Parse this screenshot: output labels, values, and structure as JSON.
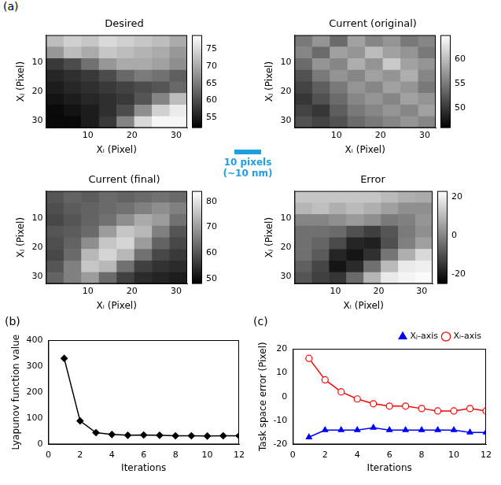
{
  "chart_data": [
    {
      "type": "heatmap",
      "panel_label": "(a)",
      "title": "Desired",
      "x_label": "Xᵢ (Pixel)",
      "y_label": "Xⱼ (Pixel)",
      "x": [
        2.5,
        6.5,
        10.5,
        14.5,
        18.5,
        22.5,
        26.5,
        30.5
      ],
      "y": [
        2.5,
        6.5,
        10.5,
        14.5,
        18.5,
        22.5,
        26.5,
        30.5
      ],
      "cells": [
        [
          72,
          74,
          73,
          75,
          74,
          73,
          72,
          70
        ],
        [
          68,
          72,
          70,
          73,
          72,
          71,
          70,
          68
        ],
        [
          58,
          60,
          64,
          68,
          70,
          70,
          69,
          67
        ],
        [
          56,
          57,
          58,
          60,
          63,
          65,
          64,
          62
        ],
        [
          55,
          56,
          57,
          58,
          59,
          60,
          61,
          63
        ],
        [
          54,
          55,
          56,
          57,
          58,
          61,
          66,
          72
        ],
        [
          53,
          54,
          55,
          57,
          60,
          67,
          74,
          77
        ],
        [
          53,
          53,
          55,
          58,
          66,
          75,
          78,
          78
        ]
      ],
      "xlim": [
        0.5,
        32.5
      ],
      "ylim": [
        0.5,
        32.5
      ],
      "xticks": [
        10,
        20,
        30
      ],
      "yticks": [
        10,
        20,
        30
      ],
      "grid": false,
      "colorbar_range": [
        52,
        79
      ],
      "colorbar_ticks": [
        55,
        60,
        65,
        70,
        75
      ]
    },
    {
      "type": "heatmap",
      "title": "Current (original)",
      "x_label": "Xᵢ (Pixel)",
      "y_label": "Xⱼ (Pixel)",
      "x": [
        2.5,
        6.5,
        10.5,
        14.5,
        18.5,
        22.5,
        26.5,
        30.5
      ],
      "y": [
        2.5,
        6.5,
        10.5,
        14.5,
        18.5,
        22.5,
        26.5,
        30.5
      ],
      "cells": [
        [
          55,
          57,
          54,
          58,
          56,
          57,
          55,
          56
        ],
        [
          56,
          54,
          58,
          57,
          60,
          58,
          57,
          55
        ],
        [
          54,
          57,
          56,
          59,
          57,
          61,
          58,
          57
        ],
        [
          52,
          55,
          57,
          56,
          58,
          57,
          59,
          56
        ],
        [
          51,
          53,
          55,
          57,
          56,
          58,
          57,
          55
        ],
        [
          50,
          52,
          54,
          56,
          57,
          56,
          58,
          57
        ],
        [
          51,
          50,
          53,
          55,
          56,
          57,
          56,
          58
        ],
        [
          52,
          51,
          52,
          54,
          55,
          56,
          57,
          56
        ]
      ],
      "xlim": [
        0.5,
        32.5
      ],
      "ylim": [
        0.5,
        32.5
      ],
      "xticks": [
        10,
        20,
        30
      ],
      "yticks": [
        10,
        20,
        30
      ],
      "grid": false,
      "colorbar_range": [
        46,
        65
      ],
      "colorbar_ticks": [
        50,
        55,
        60
      ]
    },
    {
      "type": "heatmap",
      "title": "Current (final)",
      "x_label": "Xᵢ (Pixel)",
      "y_label": "Xⱼ (Pixel)",
      "x": [
        2.5,
        6.5,
        10.5,
        14.5,
        18.5,
        22.5,
        26.5,
        30.5
      ],
      "y": [
        2.5,
        6.5,
        10.5,
        14.5,
        18.5,
        22.5,
        26.5,
        30.5
      ],
      "cells": [
        [
          60,
          62,
          61,
          63,
          62,
          63,
          64,
          63
        ],
        [
          59,
          61,
          62,
          63,
          64,
          66,
          68,
          66
        ],
        [
          58,
          60,
          62,
          64,
          68,
          72,
          70,
          64
        ],
        [
          60,
          61,
          63,
          70,
          76,
          74,
          66,
          60
        ],
        [
          59,
          62,
          68,
          76,
          78,
          70,
          62,
          58
        ],
        [
          58,
          63,
          74,
          78,
          74,
          64,
          58,
          56
        ],
        [
          60,
          66,
          76,
          74,
          64,
          57,
          55,
          54
        ],
        [
          62,
          66,
          70,
          63,
          57,
          54,
          53,
          52
        ]
      ],
      "xlim": [
        0.5,
        32.5
      ],
      "ylim": [
        0.5,
        32.5
      ],
      "xticks": [
        10,
        20,
        30
      ],
      "yticks": [
        10,
        20,
        30
      ],
      "grid": false,
      "colorbar_range": [
        48,
        84
      ],
      "colorbar_ticks": [
        50,
        60,
        70,
        80
      ]
    },
    {
      "type": "heatmap",
      "title": "Error",
      "x_label": "Xᵢ (Pixel)",
      "y_label": "Xⱼ (Pixel)",
      "x": [
        2.5,
        6.5,
        10.5,
        14.5,
        18.5,
        22.5,
        26.5,
        30.5
      ],
      "y": [
        2.5,
        6.5,
        10.5,
        14.5,
        18.5,
        22.5,
        26.5,
        30.5
      ],
      "cells": [
        [
          12,
          12,
          12,
          12,
          12,
          10,
          8,
          7
        ],
        [
          9,
          11,
          8,
          10,
          8,
          5,
          2,
          2
        ],
        [
          0,
          0,
          2,
          4,
          2,
          -2,
          -1,
          3
        ],
        [
          -4,
          -4,
          -5,
          -10,
          -13,
          -9,
          -2,
          2
        ],
        [
          -4,
          -6,
          -11,
          -18,
          -19,
          -10,
          -1,
          5
        ],
        [
          -4,
          -8,
          -18,
          -21,
          -16,
          -3,
          8,
          16
        ],
        [
          -7,
          -12,
          -21,
          -17,
          -4,
          10,
          19,
          20
        ],
        [
          -9,
          -13,
          -15,
          -5,
          9,
          19,
          21,
          22
        ]
      ],
      "xlim": [
        0.5,
        32.5
      ],
      "ylim": [
        0.5,
        32.5
      ],
      "xticks": [
        10,
        20,
        30
      ],
      "yticks": [
        10,
        20,
        30
      ],
      "grid": false,
      "colorbar_range": [
        -25,
        23
      ],
      "colorbar_ticks": [
        -20,
        0,
        20
      ]
    },
    {
      "type": "line",
      "panel_label": "(b)",
      "x_label": "Iterations",
      "y_label": "Lyapunov function value",
      "x": [
        1,
        2,
        3,
        4,
        5,
        6,
        7,
        8,
        9,
        10,
        11,
        12
      ],
      "values": [
        330,
        90,
        45,
        38,
        35,
        36,
        35,
        33,
        33,
        32,
        33,
        33
      ],
      "color": "#000000",
      "marker": "diamond",
      "xlim": [
        0,
        12
      ],
      "xticks": [
        0,
        2,
        4,
        6,
        8,
        10,
        12
      ],
      "ylim": [
        0,
        400
      ],
      "yticks": [
        0,
        100,
        200,
        300,
        400
      ],
      "grid": false
    },
    {
      "type": "line",
      "panel_label": "(c)",
      "x_label": "Iterations",
      "y_label": "Task space error (Pixel)",
      "x": [
        1,
        2,
        3,
        4,
        5,
        6,
        7,
        8,
        9,
        10,
        11,
        12
      ],
      "series": [
        {
          "name": "Xⱼ-axis",
          "color": "#0000ff",
          "marker": "triangle",
          "values": [
            -17,
            -14,
            -14,
            -14,
            -13,
            -14,
            -14,
            -14,
            -14,
            -14,
            -15,
            -15
          ]
        },
        {
          "name": "Xᵢ-axis",
          "color": "#ff0000",
          "marker": "open_circle",
          "values": [
            16,
            7,
            2,
            -1,
            -3,
            -4,
            -4,
            -5,
            -6,
            -6,
            -5,
            -6
          ]
        }
      ],
      "legend": "upper right",
      "xlim": [
        0,
        12
      ],
      "xticks": [
        0,
        2,
        4,
        6,
        8,
        10,
        12
      ],
      "ylim": [
        -20,
        20
      ],
      "yticks": [
        -20,
        -10,
        0,
        10,
        20
      ],
      "grid": false
    }
  ],
  "annotations": {
    "scale_bar": [
      "10 pixels",
      "(~10 nm)"
    ]
  }
}
